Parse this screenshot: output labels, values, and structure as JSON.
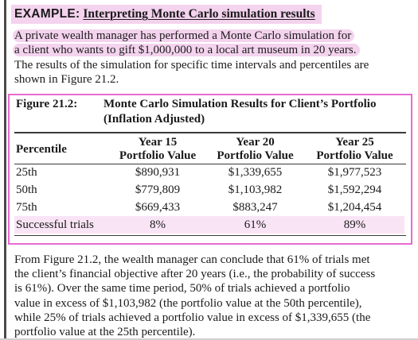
{
  "example": {
    "label": "EXAMPLE:",
    "title": "Interpreting Monte Carlo simulation results"
  },
  "intro": {
    "line1": "A private wealth manager has performed a Monte Carlo simulation for",
    "line2": "a client who wants to gift $1,000,000 to a local art museum in 20 years.",
    "line3": "The results of the simulation for specific time intervals and percentiles are",
    "line4": "shown in Figure 21.2."
  },
  "figure": {
    "number": "Figure 21.2:",
    "title_line1": "Monte Carlo Simulation Results for Client’s Portfolio",
    "title_line2": "(Inflation Adjusted)",
    "headers": {
      "percentile": "Percentile",
      "year15_line1": "Year 15",
      "year15_line2": "Portfolio Value",
      "year20_line1": "Year 20",
      "year20_line2": "Portfolio Value",
      "year25_line1": "Year 25",
      "year25_line2": "Portfolio Value"
    },
    "rows": [
      {
        "percentile": "25th",
        "year15": "$890,931",
        "year20": "$1,339,655",
        "year25": "$1,977,523"
      },
      {
        "percentile": "50th",
        "year15": "$779,809",
        "year20": "$1,103,982",
        "year25": "$1,592,294"
      },
      {
        "percentile": "75th",
        "year15": "$669,433",
        "year20": "$883,247",
        "year25": "$1,204,454"
      },
      {
        "percentile": "Successful trials",
        "year15": "8%",
        "year20": "61%",
        "year25": "89%"
      }
    ]
  },
  "conclusion": {
    "line1": "From Figure 21.2, the wealth manager can conclude that 61% of trials met",
    "line2": "the client’s financial objective after 20 years (i.e., the probability of success",
    "line3": "is 61%). Over the same time period, 50% of trials achieved a portfolio",
    "line4": "value in excess of $1,103,982 (the portfolio value at the 50th percentile),",
    "line5": "while 25% of trials achieved a portfolio value in excess of $1,339,655 (the",
    "line6": "portfolio value at the 25th percentile)."
  },
  "colors": {
    "highlight": "#f4d3ee",
    "figure_border": "#e86bd0"
  }
}
